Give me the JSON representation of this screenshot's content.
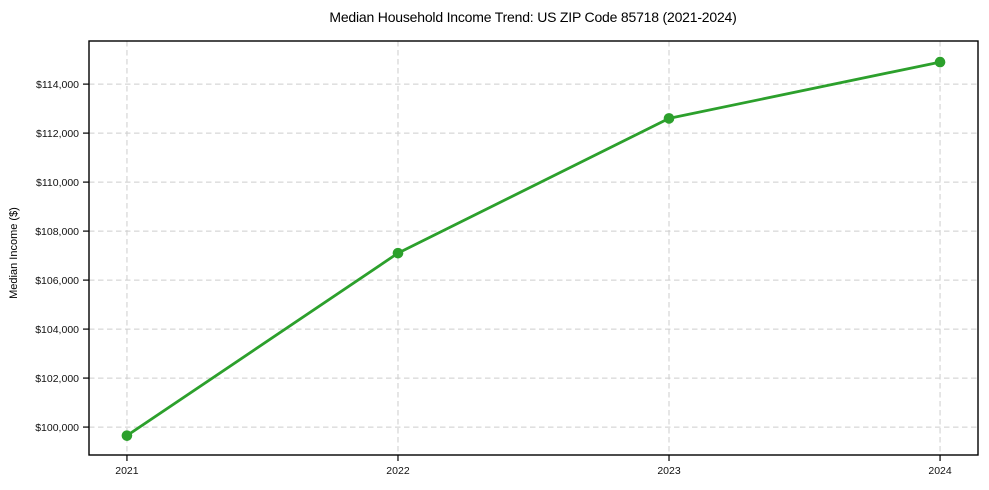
{
  "chart_data": {
    "type": "line",
    "title": "Median Household Income Trend: US ZIP Code 85718 (2021-2024)",
    "xlabel": "",
    "ylabel": "Median Income ($)",
    "categories": [
      "2021",
      "2022",
      "2023",
      "2024"
    ],
    "x": [
      2021,
      2022,
      2023,
      2024
    ],
    "series": [
      {
        "name": "Median Household Income",
        "values": [
          99650,
          107100,
          112600,
          114900
        ],
        "color": "#2ca02c",
        "marker": "circle",
        "marker_radius": 5.3,
        "line_width": 2.8
      }
    ],
    "yticks": [
      100000,
      102000,
      104000,
      106000,
      108000,
      110000,
      112000,
      114000
    ],
    "ytick_labels": [
      "$100,000",
      "$102,000",
      "$104,000",
      "$106,000",
      "$108,000",
      "$110,000",
      "$112,000",
      "$114,000"
    ],
    "ylim": [
      98860,
      115760
    ],
    "xlim": [
      2020.86,
      2024.14
    ],
    "grid": true,
    "grid_style": "dashed",
    "legend": "none",
    "grid_color": "#cdcdcd",
    "background_color": "#ffffff",
    "text_color": "#000000"
  }
}
